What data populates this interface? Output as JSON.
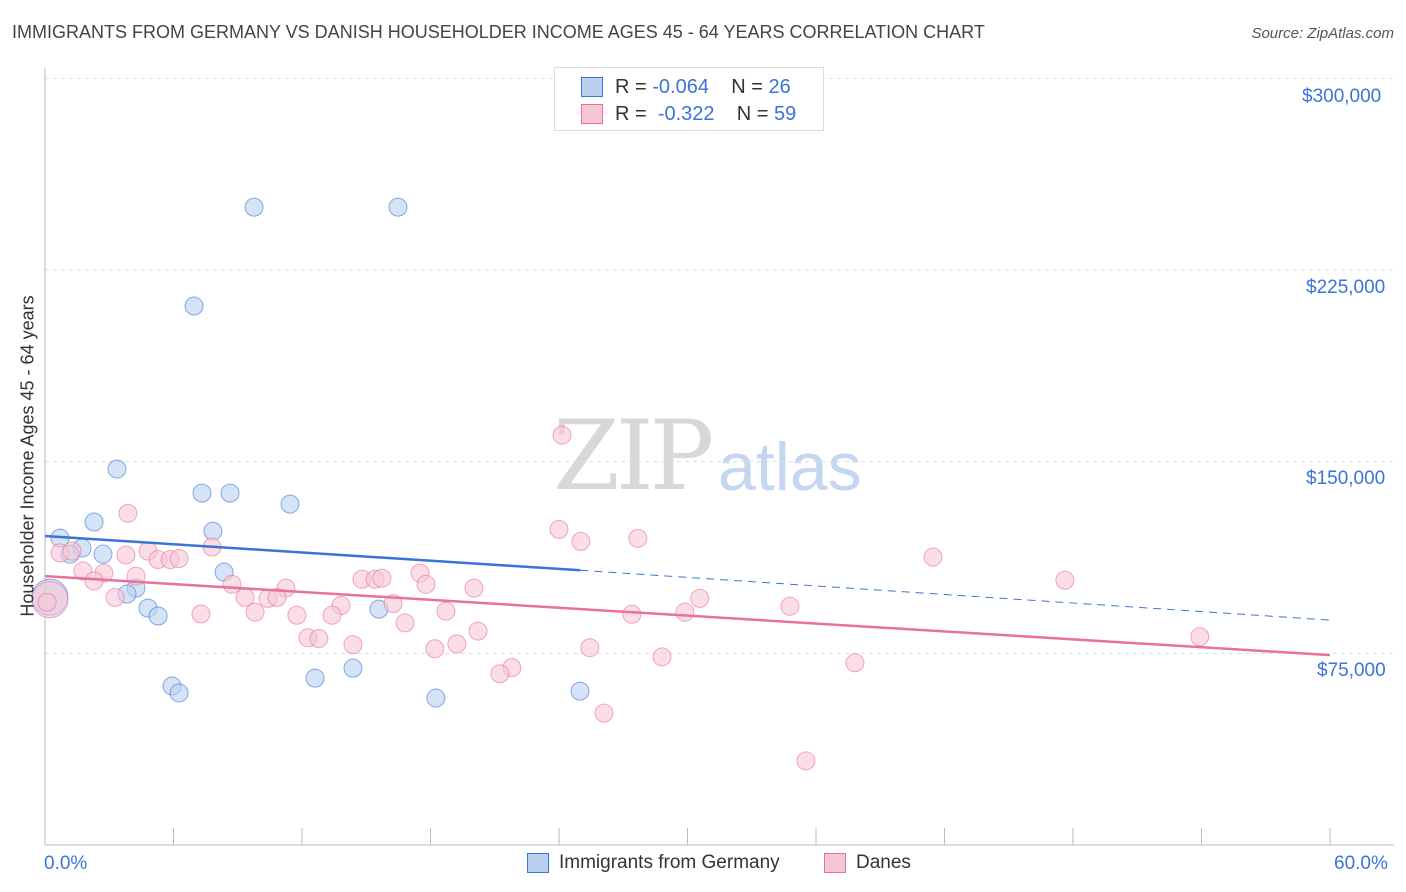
{
  "chart_data": {
    "type": "scatter",
    "title": "IMMIGRANTS FROM GERMANY VS DANISH HOUSEHOLDER INCOME AGES 45 - 64 YEARS CORRELATION CHART",
    "source": "Source: ZipAtlas.com",
    "xlabel": "",
    "ylabel": "Householder Income Ages 45 - 64 years",
    "xlim": [
      0,
      60
    ],
    "ylim": [
      0,
      300000
    ],
    "x_tick_labels": [
      "0.0%",
      "60.0%"
    ],
    "y_ticks": [
      75000,
      150000,
      225000,
      300000
    ],
    "y_tick_labels": [
      "$75,000",
      "$150,000",
      "$225,000",
      "$300,000"
    ],
    "legend": [
      {
        "r_label": "R =",
        "r": "-0.064",
        "n_label": "N =",
        "n": "26"
      },
      {
        "r_label": "R =",
        "r": "-0.322",
        "n_label": "N =",
        "n": "59"
      }
    ],
    "watermark": "ZIPatlas",
    "series": [
      {
        "name": "Immigrants from Germany",
        "color": "#3b74d6",
        "fill": "#b9d0f2",
        "trend": {
          "start": [
            0,
            120900
          ],
          "solid_end": [
            25,
            107500
          ],
          "end": [
            60,
            88000
          ]
        },
        "points": [
          [
            9.76,
            249600
          ],
          [
            16.48,
            249600
          ],
          [
            6.96,
            210900
          ],
          [
            3.36,
            147100
          ],
          [
            7.33,
            137700
          ],
          [
            8.64,
            137700
          ],
          [
            11.44,
            133400
          ],
          [
            2.29,
            126400
          ],
          [
            7.84,
            122800
          ],
          [
            0.7,
            120100
          ],
          [
            1.73,
            116200
          ],
          [
            1.17,
            113800
          ],
          [
            2.71,
            113800
          ],
          [
            8.36,
            106800
          ],
          [
            4.25,
            100500
          ],
          [
            3.83,
            98200
          ],
          [
            4.81,
            92700
          ],
          [
            5.28,
            89600
          ],
          [
            15.59,
            92300
          ],
          [
            12.61,
            65300
          ],
          [
            14.38,
            69200
          ],
          [
            5.93,
            62200
          ],
          [
            6.26,
            59500
          ],
          [
            18.25,
            57500
          ],
          [
            24.98,
            60200
          ],
          [
            0.23,
            97000,
            "large"
          ]
        ]
      },
      {
        "name": "Danes",
        "color": "#e8729a",
        "fill": "#f7c6d5",
        "trend": {
          "start": [
            0,
            105200
          ],
          "end": [
            60,
            74300
          ]
        },
        "points": [
          [
            24.14,
            160400
          ],
          [
            3.87,
            129800
          ],
          [
            24.0,
            123500
          ],
          [
            25.02,
            118800
          ],
          [
            27.68,
            120000
          ],
          [
            7.8,
            116600
          ],
          [
            4.81,
            115000
          ],
          [
            3.78,
            113500
          ],
          [
            0.7,
            114300
          ],
          [
            1.26,
            115000
          ],
          [
            41.46,
            112700
          ],
          [
            5.28,
            111700
          ],
          [
            5.84,
            111700
          ],
          [
            6.26,
            112100
          ],
          [
            1.77,
            107200
          ],
          [
            2.75,
            106400
          ],
          [
            4.25,
            105200
          ],
          [
            2.29,
            103300
          ],
          [
            17.51,
            106400
          ],
          [
            14.8,
            104000
          ],
          [
            15.41,
            104000
          ],
          [
            15.73,
            104400
          ],
          [
            17.79,
            102000
          ],
          [
            8.73,
            102000
          ],
          [
            11.25,
            100500
          ],
          [
            20.03,
            100500
          ],
          [
            47.62,
            103600
          ],
          [
            3.27,
            96900
          ],
          [
            9.34,
            96900
          ],
          [
            10.41,
            96500
          ],
          [
            10.83,
            96900
          ],
          [
            16.25,
            94500
          ],
          [
            13.82,
            93700
          ],
          [
            30.57,
            96500
          ],
          [
            18.72,
            91500
          ],
          [
            7.28,
            90400
          ],
          [
            9.81,
            91100
          ],
          [
            11.76,
            89900
          ],
          [
            13.4,
            89900
          ],
          [
            27.4,
            90300
          ],
          [
            29.88,
            91100
          ],
          [
            34.78,
            93400
          ],
          [
            16.81,
            86900
          ],
          [
            20.22,
            83700
          ],
          [
            12.28,
            81100
          ],
          [
            12.79,
            80800
          ],
          [
            14.38,
            78400
          ],
          [
            18.2,
            76800
          ],
          [
            19.23,
            78700
          ],
          [
            25.44,
            77200
          ],
          [
            28.81,
            73600
          ],
          [
            37.82,
            71300
          ],
          [
            21.8,
            69400
          ],
          [
            21.24,
            67000
          ],
          [
            53.92,
            81500
          ],
          [
            26.1,
            51600
          ],
          [
            35.53,
            32900
          ],
          [
            0.23,
            96000,
            "large"
          ],
          [
            0.1,
            95000
          ]
        ]
      }
    ]
  },
  "legend_bottom": [
    "Immigrants from Germany",
    "Danes"
  ]
}
